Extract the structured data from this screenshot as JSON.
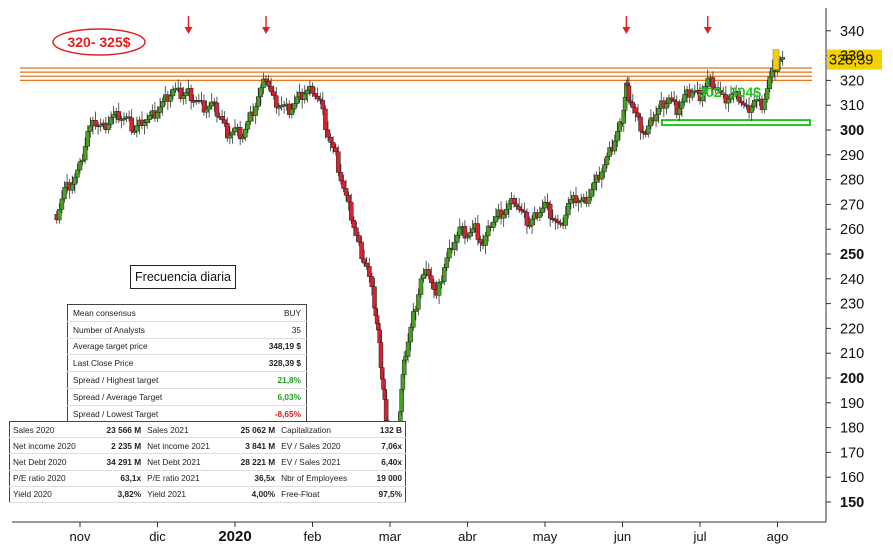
{
  "chart_data": {
    "type": "candlestick",
    "title": "",
    "xlabel": "",
    "ylabel": "",
    "ylim": [
      145,
      342
    ],
    "y_ticks": [
      150,
      160,
      170,
      180,
      190,
      200,
      210,
      220,
      230,
      240,
      250,
      260,
      270,
      280,
      290,
      300,
      310,
      320,
      330,
      340
    ],
    "bold_ticks": [
      150,
      200,
      250,
      300
    ],
    "x_labels": [
      {
        "label": "nov",
        "month": 0,
        "bold": false
      },
      {
        "label": "dic",
        "month": 1,
        "bold": false
      },
      {
        "label": "2020",
        "month": 2,
        "bold": true
      },
      {
        "label": "feb",
        "month": 3,
        "bold": false
      },
      {
        "label": "mar",
        "month": 4,
        "bold": false
      },
      {
        "label": "abr",
        "month": 5,
        "bold": false
      },
      {
        "label": "may",
        "month": 6,
        "bold": false
      },
      {
        "label": "jun",
        "month": 7,
        "bold": false
      },
      {
        "label": "jul",
        "month": 8,
        "bold": false
      },
      {
        "label": "ago",
        "month": 9,
        "bold": false
      }
    ],
    "last_price": "328,39",
    "close_series": [
      [
        -0.3,
        266
      ],
      [
        -0.2,
        276
      ],
      [
        -0.1,
        279
      ],
      [
        0.0,
        285
      ],
      [
        0.1,
        299
      ],
      [
        0.2,
        303
      ],
      [
        0.3,
        301
      ],
      [
        0.4,
        305
      ],
      [
        0.5,
        306
      ],
      [
        0.6,
        304
      ],
      [
        0.7,
        300
      ],
      [
        0.8,
        304
      ],
      [
        0.9,
        305
      ],
      [
        1.0,
        308
      ],
      [
        1.1,
        312
      ],
      [
        1.2,
        316
      ],
      [
        1.3,
        314
      ],
      [
        1.4,
        315
      ],
      [
        1.5,
        312
      ],
      [
        1.6,
        309
      ],
      [
        1.7,
        310
      ],
      [
        1.8,
        306
      ],
      [
        1.9,
        299
      ],
      [
        2.0,
        300
      ],
      [
        2.1,
        298
      ],
      [
        2.2,
        305
      ],
      [
        2.3,
        313
      ],
      [
        2.4,
        321
      ],
      [
        2.5,
        312
      ],
      [
        2.6,
        310
      ],
      [
        2.7,
        308
      ],
      [
        2.8,
        312
      ],
      [
        2.9,
        315
      ],
      [
        3.0,
        317
      ],
      [
        3.1,
        311
      ],
      [
        3.2,
        298
      ],
      [
        3.3,
        289
      ],
      [
        3.4,
        276
      ],
      [
        3.5,
        265
      ],
      [
        3.6,
        253
      ],
      [
        3.7,
        245
      ],
      [
        3.8,
        230
      ],
      [
        3.85,
        218
      ],
      [
        3.9,
        200
      ],
      [
        3.95,
        185
      ],
      [
        4.0,
        168
      ],
      [
        4.05,
        158
      ],
      [
        4.1,
        172
      ],
      [
        4.15,
        195
      ],
      [
        4.2,
        210
      ],
      [
        4.3,
        225
      ],
      [
        4.4,
        240
      ],
      [
        4.5,
        243
      ],
      [
        4.6,
        232
      ],
      [
        4.7,
        245
      ],
      [
        4.8,
        254
      ],
      [
        4.9,
        260
      ],
      [
        5.0,
        258
      ],
      [
        5.1,
        260
      ],
      [
        5.2,
        253
      ],
      [
        5.3,
        262
      ],
      [
        5.4,
        266
      ],
      [
        5.5,
        268
      ],
      [
        5.6,
        272
      ],
      [
        5.7,
        266
      ],
      [
        5.8,
        262
      ],
      [
        5.9,
        267
      ],
      [
        6.0,
        270
      ],
      [
        6.1,
        265
      ],
      [
        6.2,
        260
      ],
      [
        6.3,
        270
      ],
      [
        6.4,
        272
      ],
      [
        6.5,
        271
      ],
      [
        6.6,
        276
      ],
      [
        6.7,
        282
      ],
      [
        6.8,
        288
      ],
      [
        6.9,
        296
      ],
      [
        7.0,
        305
      ],
      [
        7.05,
        318
      ],
      [
        7.1,
        312
      ],
      [
        7.2,
        303
      ],
      [
        7.3,
        298
      ],
      [
        7.4,
        305
      ],
      [
        7.5,
        310
      ],
      [
        7.6,
        313
      ],
      [
        7.7,
        308
      ],
      [
        7.8,
        313
      ],
      [
        7.9,
        316
      ],
      [
        8.0,
        314
      ],
      [
        8.1,
        320
      ],
      [
        8.2,
        318
      ],
      [
        8.3,
        312
      ],
      [
        8.4,
        314
      ],
      [
        8.5,
        313
      ],
      [
        8.6,
        308
      ],
      [
        8.7,
        312
      ],
      [
        8.8,
        310
      ],
      [
        8.9,
        320
      ],
      [
        9.0,
        328
      ]
    ],
    "resistance_zone": {
      "low": 320,
      "high": 325,
      "label": "320- 325$",
      "color": "#e8731a"
    },
    "support_zone": {
      "low": 302,
      "high": 304,
      "label": "302- 304$",
      "color": "#22c822"
    },
    "arrow_months": [
      1.4,
      2.4,
      7.05,
      8.1
    ],
    "frequency_label": "Frecuencia diaria"
  },
  "consensus": [
    {
      "label": "Mean consensus",
      "value": "BUY",
      "style": ""
    },
    {
      "label": "Number of Analysts",
      "value": "35",
      "style": ""
    },
    {
      "label": "Average target price",
      "value": "348,19 $",
      "style": "b"
    },
    {
      "label": "Last Close Price",
      "value": "328,39 $",
      "style": "b"
    },
    {
      "label": "Spread / Highest target",
      "value": "21,8%",
      "style": "green"
    },
    {
      "label": "Spread / Average Target",
      "value": "6,03%",
      "style": "green"
    },
    {
      "label": "Spread / Lowest Target",
      "value": "-8,65%",
      "style": "red"
    }
  ],
  "fundamentals": [
    [
      "Sales 2020",
      "23 566 M",
      "Sales 2021",
      "25 062 M",
      "Capitalization",
      "132 B"
    ],
    [
      "Net income 2020",
      "2 235 M",
      "Net income 2021",
      "3 841 M",
      "EV / Sales 2020",
      "7,06x"
    ],
    [
      "Net Debt 2020",
      "34 291 M",
      "Net Debt 2021",
      "28 221 M",
      "EV / Sales 2021",
      "6,40x"
    ],
    [
      "P/E ratio 2020",
      "63,1x",
      "P/E ratio 2021",
      "36,5x",
      "Nbr of Employees",
      "19 000"
    ],
    [
      "Yield 2020",
      "3,82%",
      "Yield 2021",
      "4,00%",
      "Free-Float",
      "97,5%"
    ]
  ]
}
